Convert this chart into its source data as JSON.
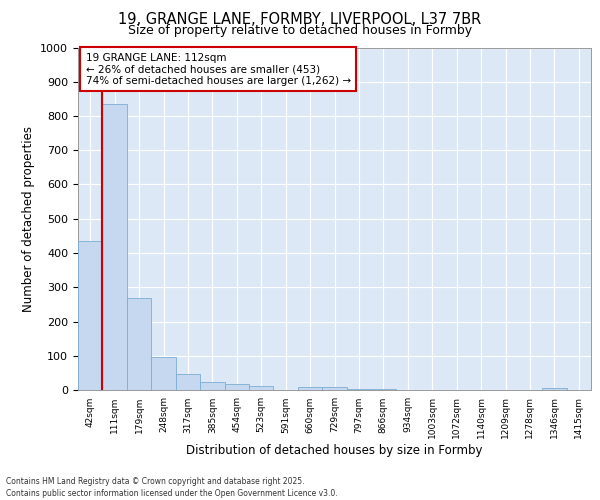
{
  "title_line1": "19, GRANGE LANE, FORMBY, LIVERPOOL, L37 7BR",
  "title_line2": "Size of property relative to detached houses in Formby",
  "xlabel": "Distribution of detached houses by size in Formby",
  "ylabel": "Number of detached properties",
  "categories": [
    "42sqm",
    "111sqm",
    "179sqm",
    "248sqm",
    "317sqm",
    "385sqm",
    "454sqm",
    "523sqm",
    "591sqm",
    "660sqm",
    "729sqm",
    "797sqm",
    "866sqm",
    "934sqm",
    "1003sqm",
    "1072sqm",
    "1140sqm",
    "1209sqm",
    "1278sqm",
    "1346sqm",
    "1415sqm"
  ],
  "values": [
    435,
    835,
    270,
    97,
    47,
    23,
    18,
    12,
    0,
    10,
    8,
    4,
    4,
    0,
    0,
    0,
    0,
    0,
    0,
    7,
    0
  ],
  "bar_color": "#c5d8f0",
  "bar_edge_color": "#7aadd4",
  "property_line_color": "#cc0000",
  "property_bin_index": 1,
  "annotation_line1": "19 GRANGE LANE: 112sqm",
  "annotation_line2": "← 26% of detached houses are smaller (453)",
  "annotation_line3": "74% of semi-detached houses are larger (1,262) →",
  "annotation_box_edge": "#cc0000",
  "ylim": [
    0,
    1000
  ],
  "yticks": [
    0,
    100,
    200,
    300,
    400,
    500,
    600,
    700,
    800,
    900,
    1000
  ],
  "footer_line1": "Contains HM Land Registry data © Crown copyright and database right 2025.",
  "footer_line2": "Contains public sector information licensed under the Open Government Licence v3.0.",
  "fig_bg_color": "#ffffff",
  "plot_bg_color": "#dce8f5"
}
